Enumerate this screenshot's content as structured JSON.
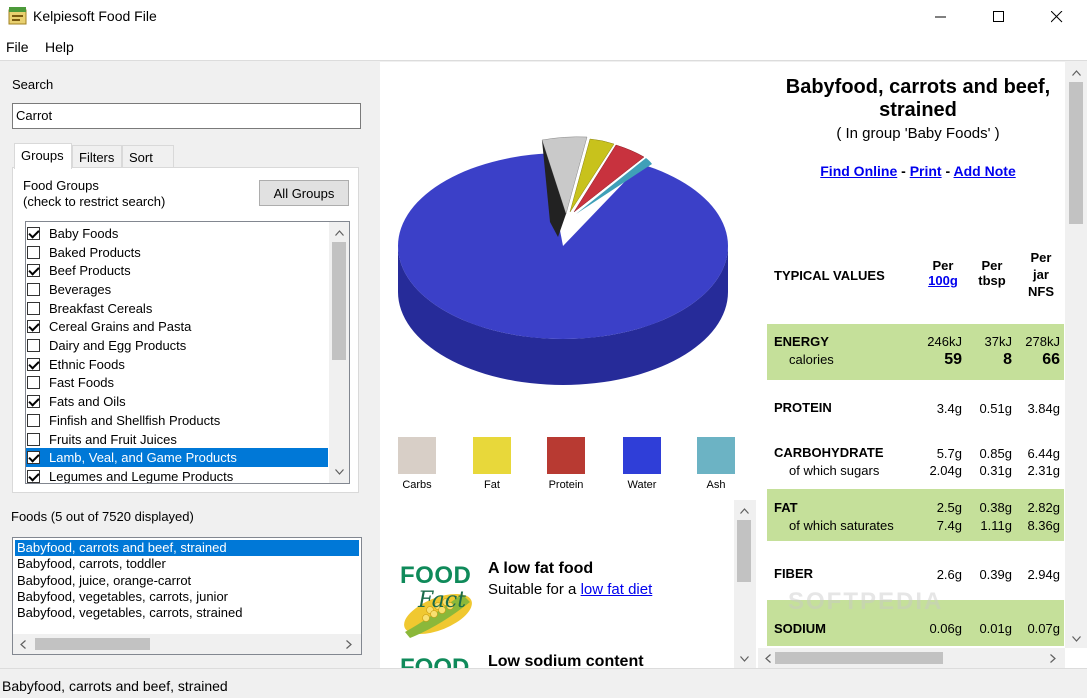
{
  "window": {
    "title": "Kelpiesoft Food File"
  },
  "menu": [
    "File",
    "Help"
  ],
  "search": {
    "label": "Search",
    "value": "Carrot"
  },
  "tabs": [
    "Groups",
    "Filters",
    "Sort"
  ],
  "groups_panel": {
    "label_line1": "Food Groups",
    "label_line2": "(check to restrict search)",
    "all_groups_button": "All Groups",
    "items": [
      {
        "label": "Baby Foods",
        "checked": true
      },
      {
        "label": "Baked Products",
        "checked": false
      },
      {
        "label": "Beef Products",
        "checked": true
      },
      {
        "label": "Beverages",
        "checked": false
      },
      {
        "label": "Breakfast Cereals",
        "checked": false
      },
      {
        "label": "Cereal Grains and Pasta",
        "checked": true
      },
      {
        "label": "Dairy and Egg Products",
        "checked": false
      },
      {
        "label": "Ethnic Foods",
        "checked": true
      },
      {
        "label": "Fast Foods",
        "checked": false
      },
      {
        "label": "Fats and Oils",
        "checked": true
      },
      {
        "label": "Finfish and Shellfish Products",
        "checked": false
      },
      {
        "label": "Fruits and Fruit Juices",
        "checked": false
      },
      {
        "label": "Lamb, Veal, and Game Products",
        "checked": true,
        "selected": true
      },
      {
        "label": "Legumes and Legume Products",
        "checked": true
      }
    ]
  },
  "foods": {
    "label": "Foods (5 out of 7520 displayed)",
    "items": [
      "Babyfood, carrots and beef, strained",
      "Babyfood, carrots, toddler",
      "Babyfood, juice, orange-carrot",
      "Babyfood, vegetables, carrots, junior",
      "Babyfood, vegetables, carrots, strained"
    ],
    "selected_index": 0
  },
  "legend": [
    {
      "label": "Carbs",
      "color": "#d8cfc7"
    },
    {
      "label": "Fat",
      "color": "#e8d83a"
    },
    {
      "label": "Protein",
      "color": "#b83a32"
    },
    {
      "label": "Water",
      "color": "#2f3ed8"
    },
    {
      "label": "Ash",
      "color": "#6cb3c4"
    }
  ],
  "facts": [
    {
      "logo_top": "FOOD",
      "logo_bottom": "Fact",
      "title": "A low fat food",
      "sub_prefix": "Suitable for a ",
      "sub_link": "low fat diet"
    },
    {
      "logo_top": "FOOD",
      "title": "Low sodium content"
    }
  ],
  "detail": {
    "title": "Babyfood, carrots and beef, strained",
    "group": "( In group 'Baby Foods' )",
    "links": {
      "find": "Find Online",
      "sep1": " - ",
      "print": "Print",
      "sep2": " - ",
      "note": "Add Note"
    },
    "header": {
      "label": "TYPICAL VALUES",
      "col1_top": "Per",
      "col1_link": "100g",
      "col2_top": "Per",
      "col2_bottom": "tbsp",
      "col3_top": "Per",
      "col3_mid": "jar",
      "col3_bottom": "NFS"
    },
    "energy": {
      "name": "ENERGY",
      "sub": "calories",
      "kj": [
        "246kJ",
        "37kJ",
        "278kJ"
      ],
      "cal": [
        "59",
        "8",
        "66"
      ]
    },
    "protein": {
      "name": "PROTEIN",
      "vals": [
        "3.4g",
        "0.51g",
        "3.84g"
      ]
    },
    "carbohydrate": {
      "name": "CARBOHYDRATE",
      "sub": "of which sugars",
      "vals": [
        "5.7g",
        "0.85g",
        "6.44g"
      ],
      "sub_vals": [
        "2.04g",
        "0.31g",
        "2.31g"
      ]
    },
    "fat": {
      "name": "FAT",
      "sub": "of which saturates",
      "vals": [
        "2.5g",
        "0.38g",
        "2.82g"
      ],
      "sub_vals": [
        "7.4g",
        "1.11g",
        "8.36g"
      ]
    },
    "fiber": {
      "name": "FIBER",
      "vals": [
        "2.6g",
        "0.39g",
        "2.94g"
      ]
    },
    "sodium": {
      "name": "SODIUM",
      "vals": [
        "0.06g",
        "0.01g",
        "0.07g"
      ]
    }
  },
  "status": "Babyfood, carrots and beef, strained",
  "watermark": "SOFTPEDIA"
}
